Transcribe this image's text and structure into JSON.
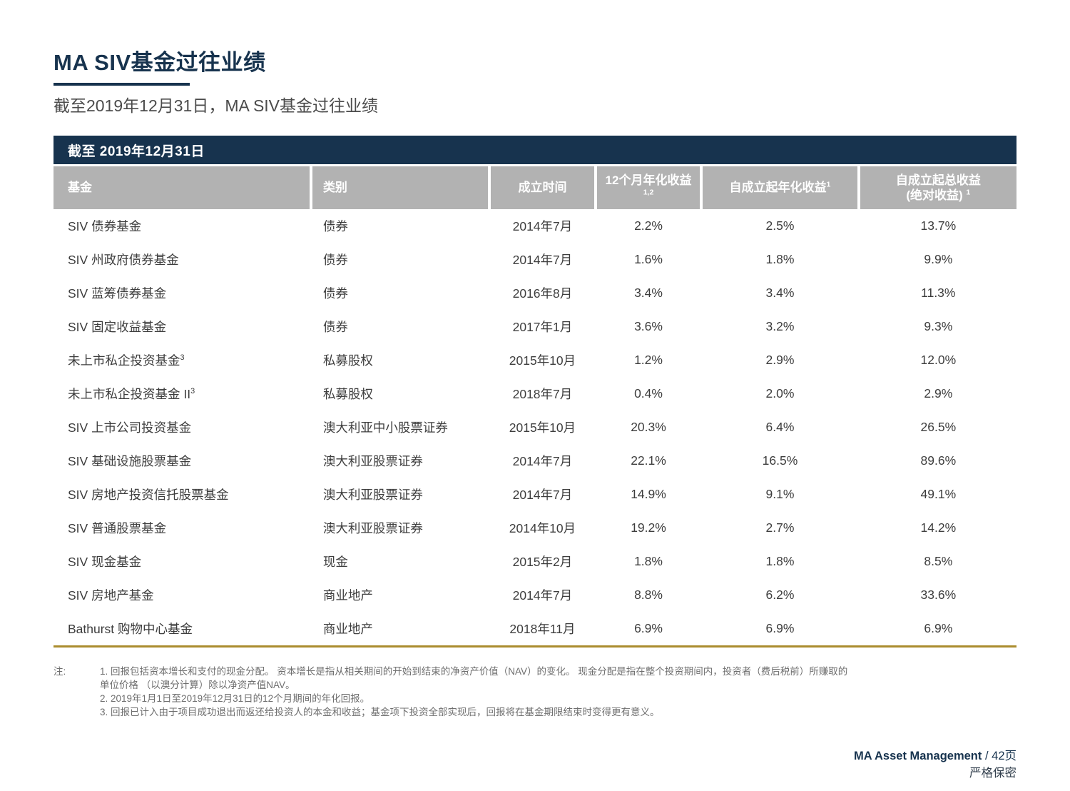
{
  "page": {
    "title": "MA SIV基金过往业绩",
    "subtitle": "截至2019年12月31日，MA SIV基金过往业绩"
  },
  "table": {
    "banner": "截至 2019年12月31日",
    "columns": [
      {
        "label": "基金"
      },
      {
        "label": "类别"
      },
      {
        "label": "成立时间"
      },
      {
        "label": "12个月年化收益",
        "sup": "1,2"
      },
      {
        "label": "自成立起年化收益",
        "sup": "1"
      },
      {
        "label": "自成立起总收益",
        "label2": "(绝对收益) ",
        "sup": "1"
      }
    ],
    "rows": [
      {
        "fund": {
          "name": "SIV 债券基金",
          "sup": ""
        },
        "category": "债券",
        "inception": "2014年7月",
        "returns_12m": "2.2%",
        "returns_since_inception_annualized": "2.5%",
        "returns_since_inception_total": "13.7%"
      },
      {
        "fund": {
          "name": "SIV 州政府债券基金",
          "sup": ""
        },
        "category": "债券",
        "inception": "2014年7月",
        "returns_12m": "1.6%",
        "returns_since_inception_annualized": "1.8%",
        "returns_since_inception_total": "9.9%"
      },
      {
        "fund": {
          "name": "SIV 蓝筹债券基金",
          "sup": ""
        },
        "category": "债券",
        "inception": "2016年8月",
        "returns_12m": "3.4%",
        "returns_since_inception_annualized": "3.4%",
        "returns_since_inception_total": "11.3%"
      },
      {
        "fund": {
          "name": "SIV 固定收益基金",
          "sup": ""
        },
        "category": "债券",
        "inception": "2017年1月",
        "returns_12m": "3.6%",
        "returns_since_inception_annualized": "3.2%",
        "returns_since_inception_total": "9.3%"
      },
      {
        "fund": {
          "name": "未上市私企投资基金",
          "sup": "3"
        },
        "category": "私募股权",
        "inception": "2015年10月",
        "returns_12m": "1.2%",
        "returns_since_inception_annualized": "2.9%",
        "returns_since_inception_total": "12.0%"
      },
      {
        "fund": {
          "name": "未上市私企投资基金 II",
          "sup": "3"
        },
        "category": "私募股权",
        "inception": "2018年7月",
        "returns_12m": "0.4%",
        "returns_since_inception_annualized": "2.0%",
        "returns_since_inception_total": "2.9%"
      },
      {
        "fund": {
          "name": "SIV 上市公司投资基金",
          "sup": ""
        },
        "category": "澳大利亚中小股票证券",
        "inception": "2015年10月",
        "returns_12m": "20.3%",
        "returns_since_inception_annualized": "6.4%",
        "returns_since_inception_total": "26.5%"
      },
      {
        "fund": {
          "name": "SIV 基础设施股票基金",
          "sup": ""
        },
        "category": "澳大利亚股票证券",
        "inception": "2014年7月",
        "returns_12m": "22.1%",
        "returns_since_inception_annualized": "16.5%",
        "returns_since_inception_total": "89.6%"
      },
      {
        "fund": {
          "name": "SIV 房地产投资信托股票基金",
          "sup": ""
        },
        "category": "澳大利亚股票证券",
        "inception": "2014年7月",
        "returns_12m": "14.9%",
        "returns_since_inception_annualized": "9.1%",
        "returns_since_inception_total": "49.1%"
      },
      {
        "fund": {
          "name": "SIV 普通股票基金",
          "sup": ""
        },
        "category": "澳大利亚股票证券",
        "inception": "2014年10月",
        "returns_12m": "19.2%",
        "returns_since_inception_annualized": "2.7%",
        "returns_since_inception_total": "14.2%"
      },
      {
        "fund": {
          "name": "SIV 现金基金",
          "sup": ""
        },
        "category": "现金",
        "inception": "2015年2月",
        "returns_12m": "1.8%",
        "returns_since_inception_annualized": "1.8%",
        "returns_since_inception_total": "8.5%"
      },
      {
        "fund": {
          "name": "SIV 房地产基金",
          "sup": ""
        },
        "category": "商业地产",
        "inception": "2014年7月",
        "returns_12m": "8.8%",
        "returns_since_inception_annualized": "6.2%",
        "returns_since_inception_total": "33.6%"
      },
      {
        "fund": {
          "name": "Bathurst 购物中心基金",
          "sup": ""
        },
        "category": "商业地产",
        "inception": "2018年11月",
        "returns_12m": "6.9%",
        "returns_since_inception_annualized": "6.9%",
        "returns_since_inception_total": "6.9%"
      }
    ]
  },
  "notes": {
    "label": "注:",
    "items": [
      "1. 回报包括资本增长和支付的现金分配。 资本增长是指从相关期间的开始到结束的净资产价值（NAV）的变化。 现金分配是指在整个投资期间内，投资者（费后税前）所赚取的\n单位价格 （以澳分计算）除以净资产值NAV。",
      "2. 2019年1月1日至2019年12月31日的12个月期间的年化回报。",
      "3. 回报已计入由于项目成功退出而返还给投资人的本金和收益；基金项下投资全部实现后，回报将在基金期限结束时变得更有意义。"
    ]
  },
  "footer": {
    "brand": "MA Asset Management",
    "page": " / 42页",
    "confidential": "严格保密"
  },
  "colors": {
    "navy": "#17334e",
    "header_gray": "#b2b2b2",
    "gold": "#aa8c2e",
    "body_text": "#3d3d3d"
  }
}
